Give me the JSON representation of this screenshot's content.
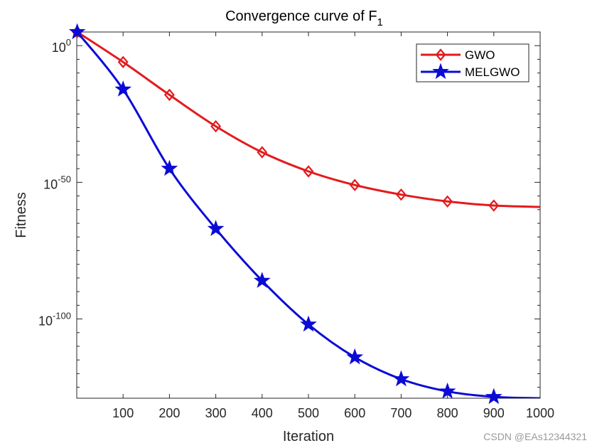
{
  "chart_data": {
    "type": "line",
    "title": "Convergence curve of F",
    "title_subscript": "1",
    "xlabel": "Iteration",
    "ylabel": "Fitness",
    "yscale": "log",
    "xlim": [
      0,
      1000
    ],
    "ylim_log10": [
      -129,
      5
    ],
    "x_ticks": [
      100,
      200,
      300,
      400,
      500,
      600,
      700,
      800,
      900,
      1000
    ],
    "x_tick_labels": [
      "100",
      "200",
      "300",
      "400",
      "500",
      "600",
      "700",
      "800",
      "900",
      "1000"
    ],
    "y_ticks": [
      {
        "exp": 0,
        "base": "10",
        "sup": "0"
      },
      {
        "exp": -50,
        "base": "10",
        "sup": "-50"
      },
      {
        "exp": -100,
        "base": "10",
        "sup": "-100"
      }
    ],
    "y_minor_ticks_log10": [
      -125,
      -120,
      -115,
      -110,
      -105,
      -95,
      -90,
      -85,
      -80,
      -75,
      -70,
      -65,
      -60,
      -55,
      -45,
      -40,
      -35,
      -30,
      -25,
      -20,
      -15,
      -10,
      -5
    ],
    "legend": {
      "position": "top-right"
    },
    "series": [
      {
        "name": "GWO",
        "color": "#e41a1c",
        "marker": "diamond",
        "x": [
          1,
          100,
          200,
          300,
          400,
          500,
          600,
          700,
          800,
          900,
          1000
        ],
        "y_log10": [
          5,
          -6,
          -18,
          -29.5,
          -39,
          -46,
          -51,
          -54.5,
          -57,
          -58.5,
          -59
        ],
        "marker_x": [
          1,
          100,
          200,
          300,
          400,
          500,
          600,
          700,
          800,
          900
        ]
      },
      {
        "name": "MELGWO",
        "color": "#0b0bd6",
        "marker": "star",
        "x": [
          1,
          100,
          200,
          300,
          400,
          500,
          600,
          700,
          800,
          900,
          1000
        ],
        "y_log10": [
          5,
          -16,
          -45,
          -67,
          -86,
          -102,
          -114,
          -122,
          -126.5,
          -128.5,
          -129
        ],
        "marker_x": [
          1,
          100,
          200,
          300,
          400,
          500,
          600,
          700,
          800,
          900
        ]
      }
    ]
  },
  "watermark": "CSDN @EAs12344321"
}
